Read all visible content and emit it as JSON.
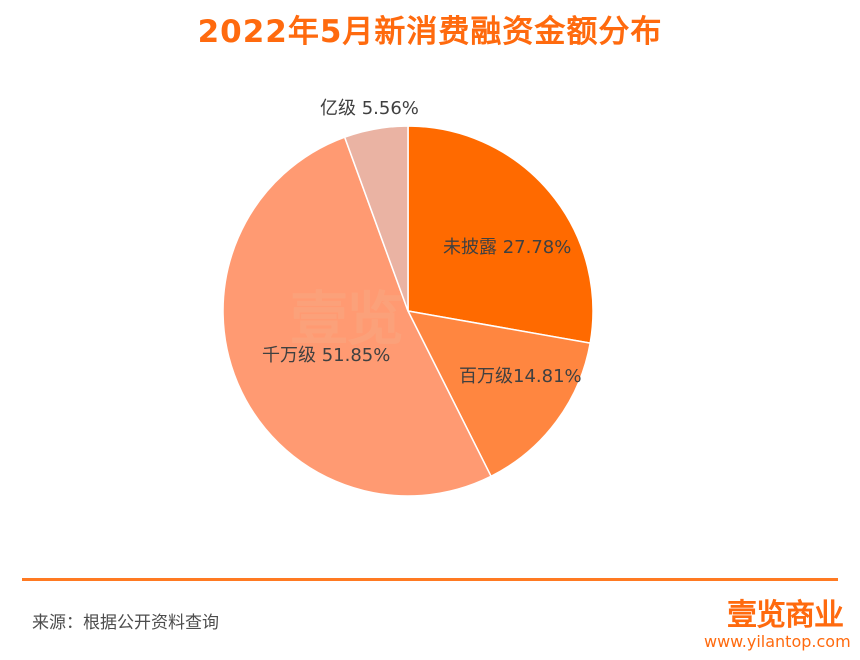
{
  "chart_data": {
    "type": "pie",
    "title": "2022年5月新消费融资金额分布",
    "slices": [
      {
        "name": "未披露",
        "value": 27.78,
        "label": "未披露 27.78%",
        "color": "#ff6a00"
      },
      {
        "name": "百万级",
        "value": 14.81,
        "label": "百万级14.81%",
        "color": "#ff8640"
      },
      {
        "name": "千万级",
        "value": 51.85,
        "label": "千万级 51.85%",
        "color": "#ff9a72"
      },
      {
        "name": "亿级",
        "value": 5.56,
        "label": "亿级 5.56%",
        "color": "#eab3a3"
      }
    ],
    "start": "top",
    "direction": "clockwise"
  },
  "footer": {
    "source": "来源：根据公开资料查询"
  },
  "brand": {
    "logo_text": "壹览商业",
    "watermark": "壹览",
    "url": "www.yilantop.com"
  }
}
